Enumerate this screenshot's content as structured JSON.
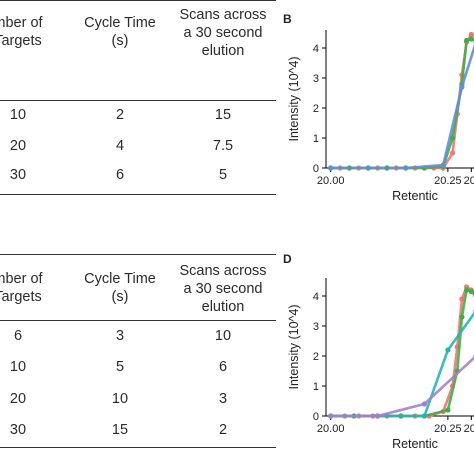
{
  "table_top": {
    "headers": [
      [
        "mber of",
        "Targets"
      ],
      [
        "Cycle Time",
        "(s)"
      ],
      [
        "Scans across",
        "a 30 second",
        "elution"
      ]
    ],
    "rows": [
      [
        "10",
        "2",
        "15"
      ],
      [
        "20",
        "4",
        "7.5"
      ],
      [
        "30",
        "6",
        "5"
      ]
    ]
  },
  "table_bottom": {
    "headers": [
      [
        "mber of",
        "Targets"
      ],
      [
        "Cycle Time",
        "(s)"
      ],
      [
        "Scans across",
        "a 30 second",
        "elution"
      ]
    ],
    "rows": [
      [
        "6",
        "3",
        "10"
      ],
      [
        "10",
        "5",
        "6"
      ],
      [
        "20",
        "10",
        "3"
      ],
      [
        "30",
        "15",
        "2"
      ]
    ]
  },
  "panels": {
    "b_label": "B",
    "d_label": "D"
  },
  "colors": {
    "red": "#f0776f",
    "green": "#3fae49",
    "blue": "#5f8fd6",
    "teal": "#22b5b8",
    "purple": "#a27fd1"
  },
  "chart_data": [
    {
      "type": "line",
      "panel": "B",
      "xlabel": "Retentic",
      "ylabel": "Intensity (10^4)",
      "xlim": [
        19.99,
        20.31
      ],
      "ylim": [
        0,
        4.6
      ],
      "xticks": [
        "20.00",
        "20.25",
        "20."
      ],
      "xtick_values": [
        20.0,
        20.25,
        20.3
      ],
      "yticks": [
        "0",
        "1",
        "2",
        "3",
        "4"
      ],
      "ytick_values": [
        0,
        1,
        2,
        3,
        4
      ],
      "series": [
        {
          "color": "red",
          "x": [
            20.0,
            20.02,
            20.04,
            20.06,
            20.08,
            20.1,
            20.12,
            20.14,
            20.16,
            20.18,
            20.2,
            20.22,
            20.24,
            20.26,
            20.27,
            20.28,
            20.29,
            20.3,
            20.31
          ],
          "y": [
            0,
            0,
            0,
            0,
            0,
            0,
            0,
            0,
            0,
            0,
            0,
            0,
            0,
            0.5,
            1.8,
            3.1,
            4.2,
            4.45,
            4.4
          ]
        },
        {
          "color": "green",
          "x": [
            20.0,
            20.04,
            20.08,
            20.12,
            20.16,
            20.2,
            20.24,
            20.26,
            20.28,
            20.29,
            20.3,
            20.31
          ],
          "y": [
            0,
            0,
            0,
            0,
            0,
            0,
            0.05,
            1.0,
            2.8,
            4.25,
            4.3,
            4.25
          ]
        },
        {
          "color": "blue",
          "x": [
            20.0,
            20.08,
            20.16,
            20.24,
            20.28,
            20.31
          ],
          "y": [
            0,
            0,
            0,
            0.1,
            2.7,
            4.2
          ]
        }
      ]
    },
    {
      "type": "line",
      "panel": "D",
      "xlabel": "Retentic",
      "ylabel": "Intensity (10^4)",
      "xlim": [
        19.99,
        20.31
      ],
      "ylim": [
        0,
        4.6
      ],
      "xticks": [
        "20.00",
        "20.25",
        "20."
      ],
      "xtick_values": [
        20.0,
        20.25,
        20.3
      ],
      "yticks": [
        "0",
        "1",
        "2",
        "3",
        "4"
      ],
      "ytick_values": [
        0,
        1,
        2,
        3,
        4
      ],
      "series": [
        {
          "color": "red",
          "x": [
            20.0,
            20.03,
            20.06,
            20.09,
            20.12,
            20.15,
            20.18,
            20.21,
            20.24,
            20.26,
            20.27,
            20.28,
            20.29,
            20.3,
            20.31
          ],
          "y": [
            0,
            0,
            0,
            0,
            0,
            0,
            0,
            0,
            0.15,
            1.0,
            2.3,
            3.9,
            4.3,
            4.2,
            4.0
          ]
        },
        {
          "color": "green",
          "x": [
            20.0,
            20.05,
            20.1,
            20.15,
            20.2,
            20.25,
            20.27,
            20.28,
            20.29,
            20.3,
            20.31
          ],
          "y": [
            0,
            0,
            0,
            0,
            0,
            0.2,
            1.5,
            3.3,
            4.2,
            4.15,
            4.0
          ]
        },
        {
          "color": "teal",
          "x": [
            20.0,
            20.1,
            20.2,
            20.25,
            20.31
          ],
          "y": [
            0,
            0,
            0,
            2.2,
            3.5
          ]
        },
        {
          "color": "purple",
          "x": [
            20.0,
            20.1,
            20.2,
            20.31
          ],
          "y": [
            0,
            0,
            0.4,
            2.0
          ]
        }
      ]
    }
  ]
}
